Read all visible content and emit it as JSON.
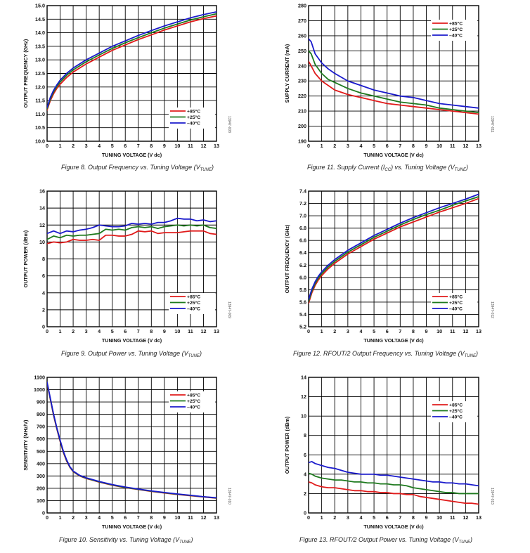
{
  "figures": [
    {
      "id": "fig8",
      "caption_main": "Figure 8. Output Frequency vs. Tuning Voltage (V",
      "caption_sub": "TUNE",
      "caption_end": ")",
      "side_id": "13947-008",
      "colors": {
        "+85°C": "#e01b1b",
        "+25°C": "#1e7a1e",
        "–40°C": "#1a1acc"
      },
      "chart_data": {
        "type": "line",
        "xlabel": "TUNING VOLTAGE (V dc)",
        "ylabel": "OUTPUT FREQUENCY (GHz)",
        "xlim": [
          0,
          13
        ],
        "ylim": [
          10.0,
          15.0
        ],
        "xticks": [
          "0",
          "1",
          "2",
          "3",
          "4",
          "5",
          "6",
          "7",
          "8",
          "9",
          "10",
          "11",
          "12",
          "13"
        ],
        "yticks": [
          "10.0",
          "10.5",
          "11.0",
          "11.5",
          "12.0",
          "12.5",
          "13.0",
          "13.5",
          "14.0",
          "14.5",
          "15.0"
        ],
        "legend_position": "bottom-right",
        "x": [
          0,
          0.25,
          0.5,
          0.75,
          1,
          1.5,
          2,
          3,
          4,
          5,
          6,
          7,
          8,
          9,
          10,
          11,
          12,
          13
        ],
        "series": [
          {
            "name": "+85°C",
            "values": [
              11.15,
              11.5,
              11.75,
              11.95,
              12.1,
              12.35,
              12.55,
              12.85,
              13.1,
              13.35,
              13.55,
              13.75,
              13.92,
              14.1,
              14.25,
              14.4,
              14.52,
              14.62
            ]
          },
          {
            "name": "+25°C",
            "values": [
              11.2,
              11.56,
              11.82,
              12.02,
              12.18,
              12.43,
              12.63,
              12.93,
              13.18,
              13.42,
              13.63,
              13.82,
              14.0,
              14.17,
              14.32,
              14.47,
              14.59,
              14.7
            ]
          },
          {
            "name": "–40°C",
            "values": [
              11.25,
              11.62,
              11.88,
              12.08,
              12.25,
              12.5,
              12.7,
              13.0,
              13.25,
              13.5,
              13.7,
              13.9,
              14.08,
              14.25,
              14.4,
              14.55,
              14.67,
              14.77
            ]
          }
        ]
      }
    },
    {
      "id": "fig11",
      "caption_main": "Figure 11. Supply Current (I",
      "caption_sub": "CC",
      "caption_end": ") vs. Tuning Voltage (V",
      "caption_sub2": "TUNE",
      "caption_end2": ")",
      "side_id": "13947-011",
      "colors": {
        "+85°C": "#e01b1b",
        "+25°C": "#1e7a1e",
        "–40°C": "#1a1acc"
      },
      "chart_data": {
        "type": "line",
        "xlabel": "TUNING VOLTAGE (V dc)",
        "ylabel": "SUPPLY CURRENT (mA)",
        "xlim": [
          0,
          13
        ],
        "ylim": [
          190,
          280
        ],
        "xticks": [
          "0",
          "1",
          "2",
          "3",
          "4",
          "5",
          "6",
          "7",
          "8",
          "9",
          "10",
          "11",
          "12",
          "13"
        ],
        "yticks": [
          "190",
          "200",
          "210",
          "220",
          "230",
          "240",
          "250",
          "260",
          "270",
          "280"
        ],
        "legend_position": "top-right",
        "x": [
          0,
          0.2,
          0.5,
          1,
          1.5,
          2,
          3,
          4,
          5,
          6,
          7,
          8,
          9,
          10,
          11,
          12,
          13
        ],
        "series": [
          {
            "name": "+85°C",
            "values": [
              243,
              240,
              235,
              230,
              227,
              224,
              221,
              219,
              217,
              215,
              214,
              213,
              212,
              211,
              210,
              209,
              208
            ]
          },
          {
            "name": "+25°C",
            "values": [
              250,
              248,
              241,
              235,
              231,
              229,
              225,
              222,
              220,
              218,
              216,
              215,
              214,
              212,
              211,
              210,
              209
            ]
          },
          {
            "name": "–40°C",
            "values": [
              258,
              256,
              248,
              242,
              238,
              235,
              230,
              227,
              224,
              222,
              220,
              219,
              217,
              215,
              214,
              213,
              212
            ]
          }
        ]
      }
    },
    {
      "id": "fig9",
      "caption_main": "Figure 9. Output Power vs. Tuning Voltage (V",
      "caption_sub": "TUNE",
      "caption_end": ")",
      "side_id": "13947-009",
      "colors": {
        "+85°C": "#e01b1b",
        "+25°C": "#1e7a1e",
        "–40°C": "#1a1acc"
      },
      "chart_data": {
        "type": "line",
        "xlabel": "TUNING VOLTAGE (V dc)",
        "ylabel": "OUTPUT POWER (dBm)",
        "xlim": [
          0,
          13
        ],
        "ylim": [
          0,
          16
        ],
        "xticks": [
          "0",
          "1",
          "2",
          "3",
          "4",
          "5",
          "6",
          "7",
          "8",
          "9",
          "10",
          "11",
          "12",
          "13"
        ],
        "yticks": [
          "0",
          "2",
          "4",
          "6",
          "8",
          "10",
          "12",
          "14",
          "16"
        ],
        "legend_position": "bottom-right",
        "x": [
          0,
          0.5,
          1,
          1.5,
          2,
          2.5,
          3,
          3.5,
          4,
          4.5,
          5,
          5.5,
          6,
          6.5,
          7,
          7.5,
          8,
          8.5,
          9,
          9.5,
          10,
          10.5,
          11,
          11.5,
          12,
          12.5,
          13
        ],
        "series": [
          {
            "name": "+85°C",
            "values": [
              9.8,
              10.0,
              9.9,
              10.0,
              10.3,
              10.2,
              10.2,
              10.3,
              10.2,
              10.8,
              10.8,
              10.7,
              10.7,
              10.9,
              11.3,
              11.2,
              11.3,
              11.0,
              11.1,
              11.1,
              11.1,
              11.2,
              11.3,
              11.3,
              11.3,
              11.0,
              10.9
            ]
          },
          {
            "name": "+25°C",
            "values": [
              10.3,
              10.7,
              10.5,
              10.8,
              10.7,
              10.8,
              10.8,
              10.9,
              11.0,
              11.5,
              11.4,
              11.5,
              11.4,
              11.7,
              11.8,
              11.7,
              11.8,
              11.6,
              11.8,
              11.9,
              12.0,
              11.9,
              12.0,
              11.9,
              12.0,
              11.7,
              11.6
            ]
          },
          {
            "name": "–40°C",
            "values": [
              11.0,
              11.3,
              11.0,
              11.3,
              11.2,
              11.4,
              11.5,
              11.7,
              12.0,
              11.9,
              11.8,
              11.8,
              11.9,
              12.2,
              12.1,
              12.2,
              12.1,
              12.3,
              12.3,
              12.5,
              12.8,
              12.7,
              12.7,
              12.5,
              12.6,
              12.4,
              12.5
            ]
          }
        ]
      }
    },
    {
      "id": "fig12",
      "caption_main": "Figure 12. RFOUT/2 Output Frequency vs. Tuning Voltage (V",
      "caption_sub": "TUNE",
      "caption_end": ")",
      "side_id": "13947-012",
      "colors": {
        "+85°C": "#e01b1b",
        "+25°C": "#1e7a1e",
        "–40°C": "#1a1acc"
      },
      "chart_data": {
        "type": "line",
        "xlabel": "TUNING VOLTAGE (V dc)",
        "ylabel": "OUTPUT FREQUENCY (GHz)",
        "xlim": [
          0,
          13
        ],
        "ylim": [
          5.2,
          7.4
        ],
        "xticks": [
          "0",
          "1",
          "2",
          "3",
          "4",
          "5",
          "6",
          "7",
          "8",
          "9",
          "10",
          "11",
          "12",
          "13"
        ],
        "yticks": [
          "5.2",
          "5.4",
          "5.6",
          "5.8",
          "6.0",
          "6.2",
          "6.4",
          "6.6",
          "6.8",
          "7.0",
          "7.2",
          "7.4"
        ],
        "legend_position": "bottom-right",
        "x": [
          0,
          0.25,
          0.5,
          0.75,
          1,
          1.5,
          2,
          3,
          4,
          5,
          6,
          7,
          8,
          9,
          10,
          11,
          12,
          13
        ],
        "series": [
          {
            "name": "+85°C",
            "values": [
              5.58,
              5.75,
              5.87,
              5.96,
              6.03,
              6.14,
              6.23,
              6.38,
              6.5,
              6.62,
              6.72,
              6.82,
              6.9,
              6.98,
              7.06,
              7.13,
              7.2,
              7.28
            ]
          },
          {
            "name": "+25°C",
            "values": [
              5.61,
              5.78,
              5.9,
              5.99,
              6.06,
              6.17,
              6.26,
              6.41,
              6.53,
              6.65,
              6.75,
              6.85,
              6.94,
              7.02,
              7.09,
              7.17,
              7.24,
              7.31
            ]
          },
          {
            "name": "–40°C",
            "values": [
              5.64,
              5.81,
              5.93,
              6.02,
              6.09,
              6.2,
              6.29,
              6.44,
              6.56,
              6.68,
              6.78,
              6.88,
              6.97,
              7.05,
              7.13,
              7.2,
              7.27,
              7.35
            ]
          }
        ]
      }
    },
    {
      "id": "fig10",
      "caption_main": "Figure 10. Sensitivity vs. Tuning Voltage (V",
      "caption_sub": "TUNE",
      "caption_end": ")",
      "side_id": "13947-010",
      "colors": {
        "+85°C": "#e01b1b",
        "+25°C": "#1e7a1e",
        "–40°C": "#1a1acc"
      },
      "chart_data": {
        "type": "line",
        "xlabel": "TUNING VOLTAGE (V dc)",
        "ylabel": "SENSITIVITY (MHz/V)",
        "xlim": [
          0,
          13
        ],
        "ylim": [
          0,
          1100
        ],
        "xticks": [
          "0",
          "1",
          "2",
          "3",
          "4",
          "5",
          "6",
          "7",
          "8",
          "9",
          "10",
          "11",
          "12",
          "13"
        ],
        "yticks": [
          "0",
          "100",
          "200",
          "300",
          "400",
          "500",
          "600",
          "700",
          "800",
          "900",
          "1000",
          "1100"
        ],
        "legend_position": "top-right",
        "x": [
          0,
          0.25,
          0.5,
          0.75,
          1,
          1.25,
          1.5,
          1.75,
          2,
          2.5,
          3,
          4,
          5,
          6,
          7,
          8,
          9,
          10,
          11,
          12,
          13
        ],
        "series": [
          {
            "name": "+85°C",
            "values": [
              1050,
              920,
              790,
              680,
              580,
              490,
              420,
              370,
              335,
              300,
              280,
              250,
              225,
              205,
              190,
              175,
              162,
              150,
              140,
              130,
              120
            ]
          },
          {
            "name": "+25°C",
            "values": [
              1055,
              925,
              795,
              685,
              585,
              495,
              425,
              372,
              337,
              302,
              282,
              252,
              227,
              207,
              192,
              177,
              164,
              152,
              142,
              131,
              121
            ]
          },
          {
            "name": "–40°C",
            "values": [
              1060,
              930,
              800,
              690,
              590,
              500,
              430,
              375,
              340,
              305,
              285,
              255,
              230,
              210,
              194,
              179,
              166,
              154,
              143,
              132,
              123
            ]
          }
        ]
      }
    },
    {
      "id": "fig13",
      "caption_main": "Figure 13. RFOUT/2 Output Power vs. Tuning Voltage (V",
      "caption_sub": "TUNE",
      "caption_end": ")",
      "side_id": "13947-013",
      "colors": {
        "+85°C": "#e01b1b",
        "+25°C": "#1e7a1e",
        "–40°C": "#1a1acc"
      },
      "chart_data": {
        "type": "line",
        "xlabel": "TUNING VOLTAGE (V dc)",
        "ylabel": "OUTPUT POWER (dBm)",
        "xlim": [
          0,
          13
        ],
        "ylim": [
          0,
          14
        ],
        "xticks": [
          "0",
          "1",
          "2",
          "3",
          "4",
          "5",
          "6",
          "7",
          "8",
          "9",
          "10",
          "11",
          "12",
          "13"
        ],
        "yticks": [
          "0",
          "2",
          "4",
          "6",
          "8",
          "10",
          "12",
          "14"
        ],
        "legend_position": "top-right",
        "x": [
          0,
          0.25,
          0.5,
          1,
          1.5,
          2,
          2.5,
          3,
          3.5,
          4,
          4.5,
          5,
          5.5,
          6,
          6.5,
          7,
          7.5,
          8,
          8.5,
          9,
          9.5,
          10,
          10.5,
          11,
          11.5,
          12,
          12.5,
          13
        ],
        "series": [
          {
            "name": "+85°C",
            "values": [
              3.2,
              3.1,
              2.9,
              2.7,
              2.6,
              2.6,
              2.5,
              2.4,
              2.3,
              2.3,
              2.2,
              2.2,
              2.1,
              2.1,
              2.0,
              2.0,
              1.9,
              1.9,
              1.7,
              1.6,
              1.5,
              1.4,
              1.3,
              1.2,
              1.1,
              1.0,
              1.0,
              0.9
            ]
          },
          {
            "name": "+25°C",
            "values": [
              4.1,
              4.0,
              3.8,
              3.6,
              3.5,
              3.4,
              3.4,
              3.3,
              3.2,
              3.2,
              3.1,
              3.1,
              3.0,
              3.0,
              2.9,
              2.9,
              2.8,
              2.6,
              2.5,
              2.4,
              2.3,
              2.2,
              2.1,
              2.1,
              2.0,
              2.0,
              2.0,
              2.0
            ]
          },
          {
            "name": "–40°C",
            "values": [
              5.2,
              5.3,
              5.1,
              4.9,
              4.7,
              4.6,
              4.4,
              4.2,
              4.1,
              4.0,
              4.0,
              4.0,
              3.9,
              3.9,
              3.8,
              3.7,
              3.6,
              3.5,
              3.4,
              3.3,
              3.2,
              3.2,
              3.1,
              3.1,
              3.0,
              3.0,
              2.9,
              2.8
            ]
          }
        ]
      }
    }
  ]
}
